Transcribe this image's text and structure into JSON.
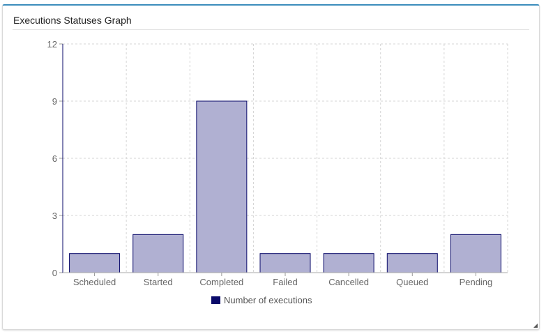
{
  "panel": {
    "title": "Executions Statuses Graph"
  },
  "chart_data": {
    "type": "bar",
    "categories": [
      "Scheduled",
      "Started",
      "Completed",
      "Failed",
      "Cancelled",
      "Queued",
      "Pending"
    ],
    "series": [
      {
        "name": "Number of executions",
        "values": [
          1,
          2,
          9,
          1,
          1,
          1,
          2
        ]
      }
    ],
    "ylim": [
      0,
      12
    ],
    "yticks": [
      "0",
      "3",
      "6",
      "9",
      "12"
    ],
    "grid": true,
    "legend_position": "bottom"
  },
  "colors": {
    "bar_fill": "#b0b0d2",
    "bar_stroke": "#0a0a6a",
    "grid": "#d4d4d4",
    "accent": "#3c8dbc"
  },
  "icons": {
    "resize": "resize-corner-icon"
  }
}
